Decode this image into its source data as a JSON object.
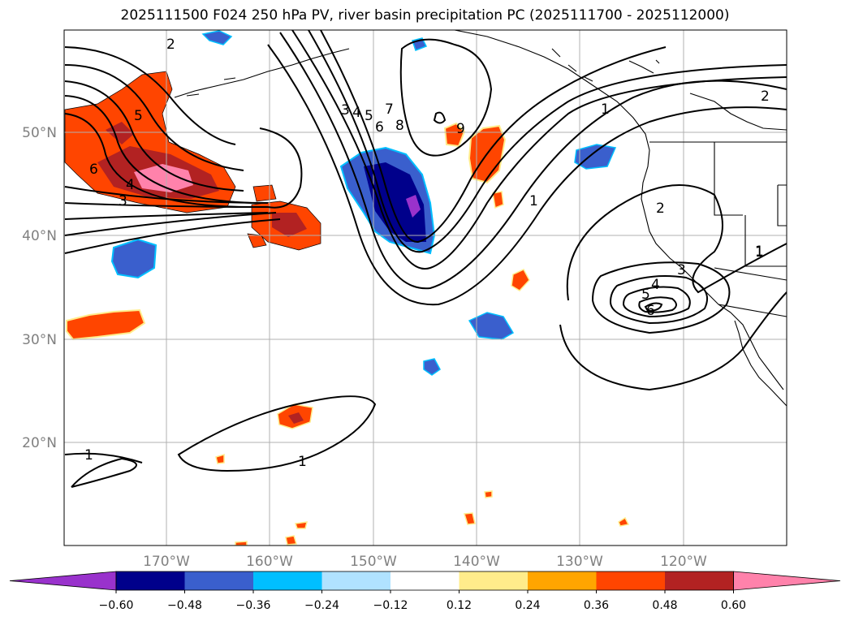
{
  "title": "2025111500 F024 250 hPa PV, river basin precipitation PC (2025111700 - 2025112000)",
  "lon_labels": [
    "170°W",
    "160°W",
    "150°W",
    "140°W",
    "130°W",
    "120°W"
  ],
  "lat_labels": [
    "50°N",
    "40°N",
    "30°N",
    "20°N"
  ],
  "colorbar": {
    "colors": [
      "#9932cc",
      "#00008b",
      "#3a5fcd",
      "#00bfff",
      "#b0e2ff",
      "#ffffff",
      "#ffec8b",
      "#ffa500",
      "#ff4500",
      "#b22222",
      "#ff82ab"
    ],
    "ticks": [
      "−0.60",
      "−0.48",
      "−0.36",
      "−0.24",
      "−0.12",
      "0.12",
      "0.24",
      "0.36",
      "0.48",
      "0.60"
    ]
  },
  "contour_labels": [
    "2",
    "6",
    "5",
    "4",
    "3",
    "3",
    "4",
    "5",
    "6",
    "7",
    "8",
    "9",
    "1",
    "1",
    "2",
    "1",
    "2",
    "3",
    "4",
    "5",
    "6",
    "1",
    "1",
    "1"
  ]
}
